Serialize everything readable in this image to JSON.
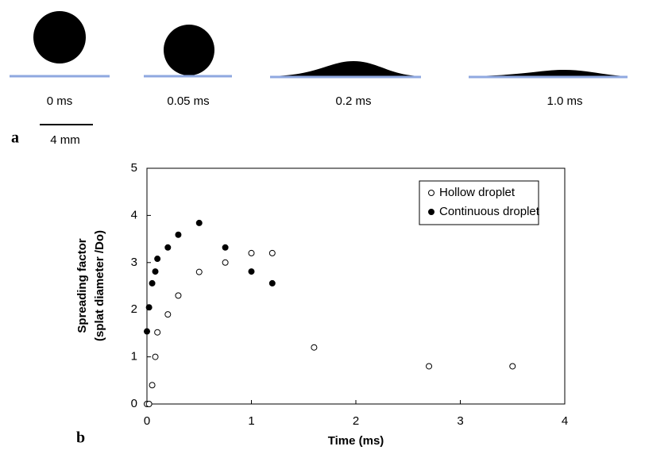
{
  "panel_a": {
    "label": "a",
    "frames": [
      "0 ms",
      "0.05 ms",
      "0.2 ms",
      "1.0 ms"
    ],
    "scale_bar": "4 mm"
  },
  "chart_data": {
    "type": "scatter",
    "panel_label": "b",
    "xlabel": "Time (ms)",
    "ylabel": [
      "Spreading factor",
      "(splat diameter /Do)"
    ],
    "xlim": [
      0,
      4
    ],
    "xticks": [
      0,
      1,
      2,
      3,
      4
    ],
    "ylim": [
      0,
      5
    ],
    "yticks": [
      0,
      1,
      2,
      3,
      4,
      5
    ],
    "grid": false,
    "legend": "top-right",
    "series": [
      {
        "name": "Hollow droplet",
        "color": "#ffffff",
        "x": [
          0,
          0.02,
          0.05,
          0.08,
          0.1,
          0.2,
          0.3,
          0.5,
          0.75,
          1.0,
          1.2,
          1.6,
          2.7,
          3.5
        ],
        "values": [
          0,
          0,
          0.4,
          1.0,
          1.52,
          1.9,
          2.3,
          2.8,
          3.0,
          3.2,
          3.2,
          1.2,
          0.8,
          0.8
        ]
      },
      {
        "name": "Continuous droplet",
        "color": "#000000",
        "x": [
          0,
          0.02,
          0.05,
          0.08,
          0.1,
          0.2,
          0.3,
          0.5,
          0.75,
          1.0,
          1.2
        ],
        "values": [
          1.54,
          2.05,
          2.56,
          2.81,
          3.08,
          3.32,
          3.59,
          3.84,
          3.32,
          2.81,
          2.56
        ]
      }
    ]
  }
}
